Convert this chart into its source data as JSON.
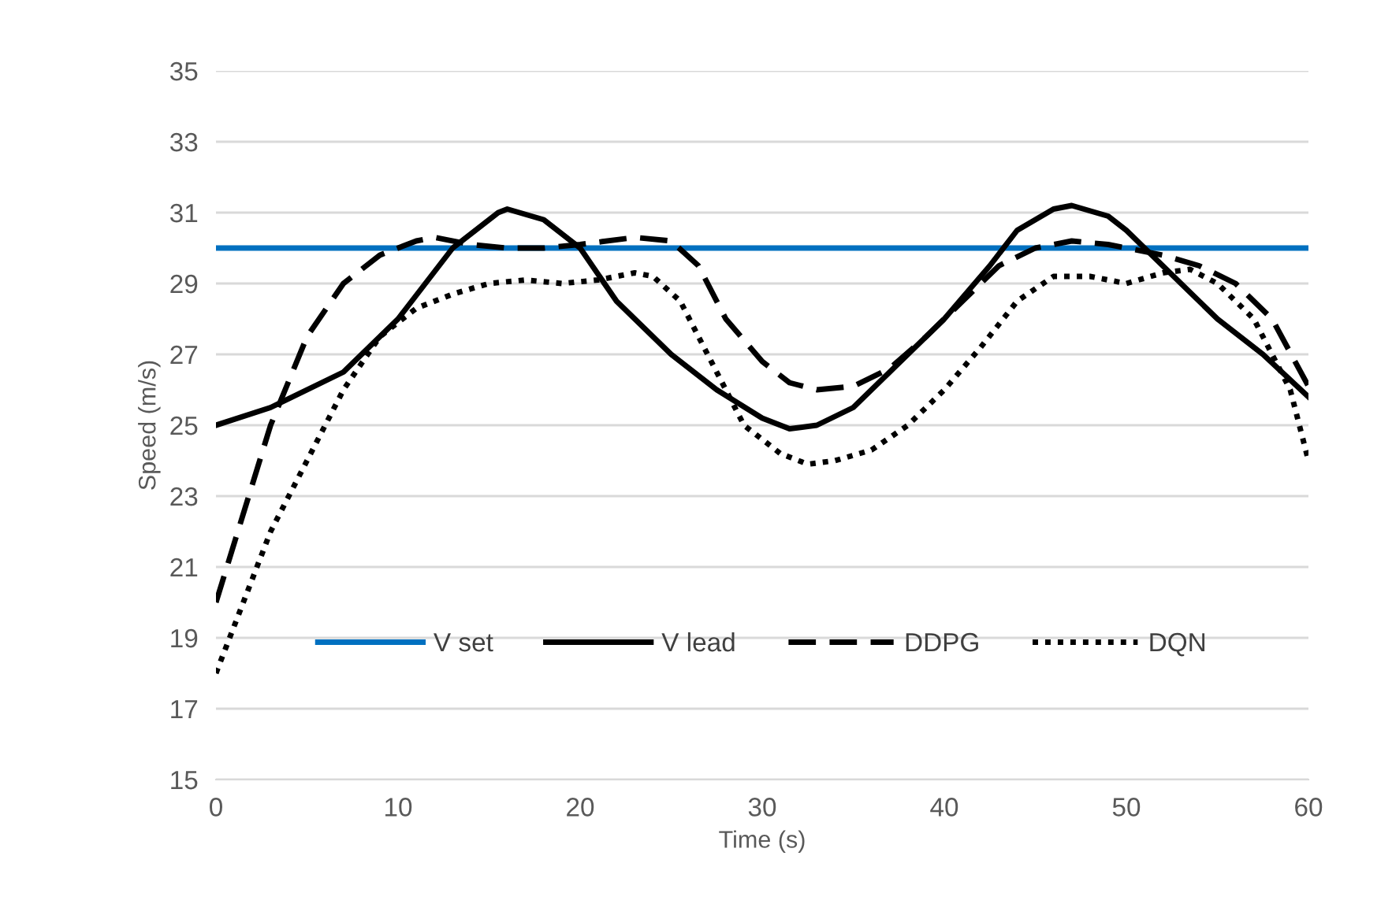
{
  "chart_data": {
    "type": "line",
    "xlabel": "Time (s)",
    "ylabel": "Speed (m/s)",
    "xlim": [
      0,
      60
    ],
    "xticks": [
      0,
      10,
      20,
      30,
      40,
      50,
      60
    ],
    "ylim": [
      15,
      35
    ],
    "yticks": [
      15,
      17,
      19,
      21,
      23,
      25,
      27,
      29,
      31,
      33,
      35
    ],
    "grid": "y",
    "legend": "bottom",
    "marker": "none",
    "series": [
      {
        "name": "V set",
        "color": "#0070c0",
        "line_style": "solid",
        "x": [
          0,
          60
        ],
        "values": [
          30,
          30
        ]
      },
      {
        "name": "V lead",
        "color": "#000000",
        "line_style": "solid",
        "x": [
          0,
          3,
          7,
          10,
          13,
          15.5,
          16,
          18,
          20,
          22,
          25,
          27.5,
          30,
          31.5,
          33,
          35,
          37,
          40,
          42.5,
          44,
          46,
          47,
          49,
          50,
          52,
          55,
          57.5,
          60
        ],
        "values": [
          25,
          25.5,
          26.5,
          28,
          30,
          31,
          31.1,
          30.8,
          30,
          28.5,
          27,
          26,
          25.2,
          24.9,
          25,
          25.5,
          26.5,
          28,
          29.5,
          30.5,
          31.1,
          31.2,
          30.9,
          30.5,
          29.5,
          28,
          27,
          25.8
        ]
      },
      {
        "name": "DDPG",
        "color": "#000000",
        "line_style": "dashed",
        "x": [
          0,
          1.5,
          3,
          5,
          7,
          9,
          11,
          12,
          14,
          16,
          18,
          20,
          23,
          25,
          26.5,
          28,
          30,
          31.5,
          33,
          35,
          37,
          39,
          41,
          43,
          45,
          47,
          49,
          50,
          52,
          54,
          56,
          58,
          60
        ],
        "values": [
          20,
          22.5,
          25,
          27.5,
          29,
          29.8,
          30.2,
          30.3,
          30.1,
          30,
          30,
          30.1,
          30.3,
          30.2,
          29.5,
          28,
          26.8,
          26.2,
          26,
          26.1,
          26.6,
          27.5,
          28.5,
          29.5,
          30,
          30.2,
          30.1,
          30,
          29.8,
          29.5,
          29,
          28,
          26.1
        ]
      },
      {
        "name": "DQN",
        "color": "#000000",
        "line_style": "dotted",
        "x": [
          0,
          1.5,
          3,
          5,
          7,
          9,
          11,
          13,
          15,
          17,
          19,
          21,
          23,
          24,
          25.5,
          27,
          29,
          31,
          32.5,
          34,
          36,
          38,
          40,
          42,
          44,
          46,
          48,
          50,
          52,
          53.5,
          55,
          57,
          59,
          60
        ],
        "values": [
          18,
          20,
          22,
          24,
          26,
          27.5,
          28.3,
          28.7,
          29,
          29.1,
          29,
          29.1,
          29.3,
          29.2,
          28.5,
          27,
          25,
          24.2,
          23.9,
          24,
          24.3,
          25,
          26,
          27.2,
          28.5,
          29.2,
          29.2,
          29,
          29.3,
          29.4,
          29,
          28,
          26,
          24
        ]
      }
    ]
  }
}
